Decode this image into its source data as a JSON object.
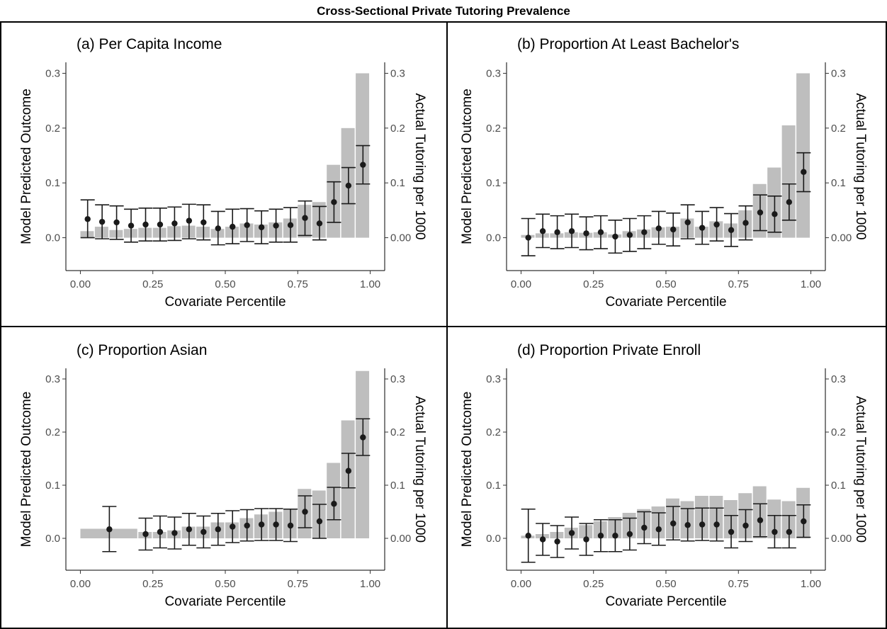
{
  "title": "Cross-Sectional Private Tutoring Prevalence",
  "chart_data": [
    {
      "type": "bar",
      "title": "(a) Per Capita Income",
      "xlabel": "Covariate Percentile",
      "ylabel": "Model Predicted Outcome",
      "y2label": "Actual Tutoring per 1000",
      "xlim": [
        -0.05,
        1.05
      ],
      "ylim": [
        -0.06,
        0.32
      ],
      "xticks": [
        "0.00",
        "0.25",
        "0.50",
        "0.75",
        "1.00"
      ],
      "yticks": [
        "0.0",
        "0.1",
        "0.2",
        "0.3"
      ],
      "y2ticks": [
        "0.00",
        "0.1",
        "0.2",
        "0.3"
      ],
      "bars": {
        "x_start": [
          0.0,
          0.05,
          0.1,
          0.15,
          0.2,
          0.25,
          0.3,
          0.35,
          0.4,
          0.45,
          0.5,
          0.55,
          0.6,
          0.65,
          0.7,
          0.75,
          0.8,
          0.85,
          0.9,
          0.95
        ],
        "x_end": [
          0.05,
          0.1,
          0.15,
          0.2,
          0.25,
          0.3,
          0.35,
          0.4,
          0.45,
          0.5,
          0.55,
          0.6,
          0.65,
          0.7,
          0.75,
          0.8,
          0.85,
          0.9,
          0.95,
          1.0
        ],
        "values": [
          0.012,
          0.02,
          0.014,
          0.016,
          0.018,
          0.018,
          0.021,
          0.022,
          0.02,
          0.016,
          0.02,
          0.026,
          0.024,
          0.028,
          0.035,
          0.06,
          0.065,
          0.133,
          0.2,
          0.3
        ]
      },
      "points": {
        "x": [
          0.025,
          0.075,
          0.125,
          0.175,
          0.225,
          0.275,
          0.325,
          0.375,
          0.425,
          0.475,
          0.525,
          0.575,
          0.625,
          0.675,
          0.725,
          0.775,
          0.825,
          0.875,
          0.925,
          0.975
        ],
        "y": [
          0.034,
          0.029,
          0.028,
          0.022,
          0.024,
          0.024,
          0.026,
          0.031,
          0.028,
          0.017,
          0.02,
          0.023,
          0.019,
          0.022,
          0.023,
          0.036,
          0.026,
          0.065,
          0.095,
          0.133
        ],
        "lower": [
          0.0,
          -0.002,
          -0.003,
          -0.008,
          -0.006,
          -0.006,
          -0.005,
          -0.002,
          -0.004,
          -0.013,
          -0.011,
          -0.007,
          -0.011,
          -0.008,
          -0.008,
          0.004,
          -0.004,
          0.028,
          0.062,
          0.098
        ],
        "upper": [
          0.069,
          0.06,
          0.058,
          0.052,
          0.054,
          0.054,
          0.056,
          0.061,
          0.06,
          0.048,
          0.052,
          0.053,
          0.049,
          0.052,
          0.055,
          0.067,
          0.057,
          0.102,
          0.128,
          0.168
        ]
      }
    },
    {
      "type": "bar",
      "title": "(b) Proportion At Least Bachelor's",
      "xlabel": "Covariate Percentile",
      "ylabel": "Model Predicted Outcome",
      "y2label": "Actual Tutoring per 1000",
      "xlim": [
        -0.05,
        1.05
      ],
      "ylim": [
        -0.06,
        0.32
      ],
      "xticks": [
        "0.00",
        "0.25",
        "0.50",
        "0.75",
        "1.00"
      ],
      "yticks": [
        "0.0",
        "0.1",
        "0.2",
        "0.3"
      ],
      "y2ticks": [
        "0.00",
        "0.1",
        "0.2",
        "0.3"
      ],
      "bars": {
        "x_start": [
          0.0,
          0.05,
          0.1,
          0.15,
          0.2,
          0.25,
          0.3,
          0.35,
          0.4,
          0.45,
          0.5,
          0.55,
          0.6,
          0.65,
          0.7,
          0.75,
          0.8,
          0.85,
          0.9,
          0.95
        ],
        "x_end": [
          0.05,
          0.1,
          0.15,
          0.2,
          0.25,
          0.3,
          0.35,
          0.4,
          0.45,
          0.5,
          0.55,
          0.6,
          0.65,
          0.7,
          0.75,
          0.8,
          0.85,
          0.9,
          0.95,
          1.0
        ],
        "values": [
          0.005,
          0.008,
          0.008,
          0.01,
          0.009,
          0.01,
          0.006,
          0.012,
          0.015,
          0.019,
          0.02,
          0.035,
          0.02,
          0.03,
          0.026,
          0.05,
          0.098,
          0.128,
          0.205,
          0.3
        ]
      },
      "points": {
        "x": [
          0.025,
          0.075,
          0.125,
          0.175,
          0.225,
          0.275,
          0.325,
          0.375,
          0.425,
          0.475,
          0.525,
          0.575,
          0.625,
          0.675,
          0.725,
          0.775,
          0.825,
          0.875,
          0.925,
          0.975
        ],
        "y": [
          0.0,
          0.012,
          0.01,
          0.012,
          0.008,
          0.01,
          0.002,
          0.005,
          0.01,
          0.017,
          0.015,
          0.028,
          0.018,
          0.024,
          0.014,
          0.027,
          0.046,
          0.043,
          0.065,
          0.12
        ],
        "lower": [
          -0.033,
          -0.018,
          -0.02,
          -0.018,
          -0.022,
          -0.02,
          -0.028,
          -0.025,
          -0.02,
          -0.012,
          -0.015,
          -0.002,
          -0.012,
          -0.006,
          -0.016,
          -0.004,
          0.013,
          0.01,
          0.032,
          0.084
        ],
        "upper": [
          0.035,
          0.043,
          0.04,
          0.043,
          0.038,
          0.04,
          0.032,
          0.035,
          0.04,
          0.048,
          0.045,
          0.06,
          0.048,
          0.055,
          0.044,
          0.058,
          0.078,
          0.076,
          0.098,
          0.155
        ]
      }
    },
    {
      "type": "bar",
      "title": "(c) Proportion Asian",
      "xlabel": "Covariate Percentile",
      "ylabel": "Model Predicted Outcome",
      "y2label": "Actual Tutoring per 1000",
      "xlim": [
        -0.05,
        1.05
      ],
      "ylim": [
        -0.06,
        0.32
      ],
      "xticks": [
        "0.00",
        "0.25",
        "0.50",
        "0.75",
        "1.00"
      ],
      "yticks": [
        "0.0",
        "0.1",
        "0.2",
        "0.3"
      ],
      "y2ticks": [
        "0.00",
        "0.1",
        "0.2",
        "0.3"
      ],
      "bars": {
        "x_start": [
          0.0,
          0.2,
          0.25,
          0.3,
          0.35,
          0.4,
          0.45,
          0.5,
          0.55,
          0.6,
          0.65,
          0.7,
          0.75,
          0.8,
          0.85,
          0.9,
          0.95
        ],
        "x_end": [
          0.2,
          0.25,
          0.3,
          0.35,
          0.4,
          0.45,
          0.5,
          0.55,
          0.6,
          0.65,
          0.7,
          0.75,
          0.8,
          0.85,
          0.9,
          0.95,
          1.0
        ],
        "values": [
          0.018,
          0.012,
          0.012,
          0.015,
          0.022,
          0.022,
          0.03,
          0.03,
          0.038,
          0.045,
          0.05,
          0.055,
          0.093,
          0.09,
          0.142,
          0.222,
          0.315
        ]
      },
      "points": {
        "x": [
          0.1,
          0.225,
          0.275,
          0.325,
          0.375,
          0.425,
          0.475,
          0.525,
          0.575,
          0.625,
          0.675,
          0.725,
          0.775,
          0.825,
          0.875,
          0.925,
          0.975
        ],
        "y": [
          0.017,
          0.008,
          0.012,
          0.01,
          0.017,
          0.012,
          0.017,
          0.022,
          0.024,
          0.026,
          0.026,
          0.024,
          0.05,
          0.032,
          0.065,
          0.127,
          0.19
        ],
        "lower": [
          -0.025,
          -0.022,
          -0.018,
          -0.02,
          -0.013,
          -0.018,
          -0.013,
          -0.008,
          -0.005,
          -0.004,
          -0.004,
          -0.006,
          0.02,
          0.0,
          0.035,
          0.095,
          0.156
        ],
        "upper": [
          0.06,
          0.038,
          0.042,
          0.04,
          0.047,
          0.042,
          0.047,
          0.052,
          0.054,
          0.056,
          0.056,
          0.055,
          0.08,
          0.064,
          0.096,
          0.16,
          0.225
        ]
      }
    },
    {
      "type": "bar",
      "title": "(d) Proportion Private Enroll",
      "xlabel": "Covariate Percentile",
      "ylabel": "Model Predicted Outcome",
      "y2label": "Actual Tutoring per 1000",
      "xlim": [
        -0.05,
        1.05
      ],
      "ylim": [
        -0.06,
        0.32
      ],
      "xticks": [
        "0.00",
        "0.25",
        "0.50",
        "0.75",
        "1.00"
      ],
      "yticks": [
        "0.0",
        "0.1",
        "0.2",
        "0.3"
      ],
      "y2ticks": [
        "0.00",
        "0.1",
        "0.2",
        "0.3"
      ],
      "bars": {
        "x_start": [
          0.0,
          0.05,
          0.1,
          0.15,
          0.2,
          0.25,
          0.3,
          0.35,
          0.4,
          0.45,
          0.5,
          0.55,
          0.6,
          0.65,
          0.7,
          0.75,
          0.8,
          0.85,
          0.9,
          0.95
        ],
        "x_end": [
          0.05,
          0.1,
          0.15,
          0.2,
          0.25,
          0.3,
          0.35,
          0.4,
          0.45,
          0.5,
          0.55,
          0.6,
          0.65,
          0.7,
          0.75,
          0.8,
          0.85,
          0.9,
          0.95,
          1.0
        ],
        "values": [
          0.005,
          0.008,
          0.012,
          0.02,
          0.025,
          0.032,
          0.04,
          0.048,
          0.055,
          0.06,
          0.075,
          0.07,
          0.08,
          0.08,
          0.072,
          0.085,
          0.098,
          0.073,
          0.07,
          0.095
        ]
      },
      "points": {
        "x": [
          0.025,
          0.075,
          0.125,
          0.175,
          0.225,
          0.275,
          0.325,
          0.375,
          0.425,
          0.475,
          0.525,
          0.575,
          0.625,
          0.675,
          0.725,
          0.775,
          0.825,
          0.875,
          0.925,
          0.975
        ],
        "y": [
          0.005,
          -0.002,
          -0.006,
          0.01,
          -0.002,
          0.005,
          0.005,
          0.008,
          0.02,
          0.017,
          0.028,
          0.025,
          0.026,
          0.026,
          0.012,
          0.024,
          0.034,
          0.012,
          0.012,
          0.032
        ],
        "lower": [
          -0.045,
          -0.032,
          -0.036,
          -0.02,
          -0.032,
          -0.025,
          -0.025,
          -0.022,
          -0.01,
          -0.013,
          -0.003,
          -0.005,
          -0.004,
          -0.005,
          -0.018,
          -0.006,
          0.003,
          -0.018,
          -0.018,
          0.002
        ],
        "upper": [
          0.055,
          0.028,
          0.024,
          0.04,
          0.028,
          0.035,
          0.035,
          0.038,
          0.05,
          0.048,
          0.06,
          0.056,
          0.057,
          0.057,
          0.043,
          0.054,
          0.065,
          0.043,
          0.043,
          0.063
        ]
      }
    }
  ]
}
